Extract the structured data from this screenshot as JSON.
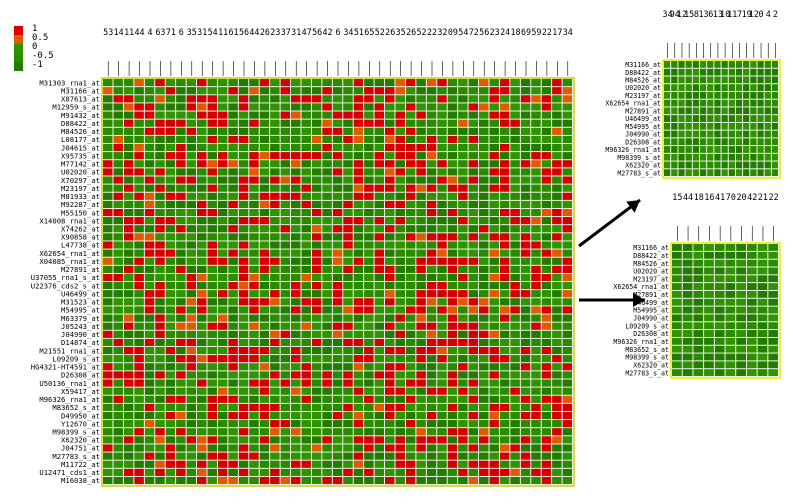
{
  "colors": {
    "high": "#d40000",
    "mid_high": "#e05a00",
    "mid": "#2f9400",
    "mid_low": "#2a8a00",
    "low": "#237c00",
    "grid": "#ffffff",
    "panel_border": "#e8e800",
    "arrow": "#000000"
  },
  "legend": {
    "items": [
      {
        "label": "1",
        "color": "#d40000"
      },
      {
        "label": "0.5",
        "color": "#e05a00"
      },
      {
        "label": "0",
        "color": "#2f9400"
      },
      {
        "label": "-0.5",
        "color": "#2a8a00"
      },
      {
        "label": "-1",
        "color": "#237c00"
      }
    ]
  },
  "chart_data": [
    {
      "type": "heatmap",
      "title": "",
      "column_labels": [
        "53",
        "14",
        "11",
        "44",
        "4",
        "63",
        "71",
        "6",
        "35",
        "31",
        "54",
        "11",
        "61",
        "56",
        "44",
        "26",
        "23",
        "37",
        "31",
        "47",
        "56",
        "42",
        "6",
        "34",
        "51",
        "65",
        "52",
        "26",
        "35",
        "26",
        "52",
        "22",
        "32",
        "09",
        "54",
        "72",
        "56",
        "23",
        "24",
        "18",
        "69",
        "59",
        "22",
        "17",
        "34"
      ],
      "row_labels": [
        "M31303_rna1_at",
        "M31166_at",
        "X87613_at",
        "M12959_s_at",
        "M91432_at",
        "D88422_at",
        "M84526_at",
        "L08177_at",
        "J04615_at",
        "X95735_at",
        "M77142_at",
        "U02020_at",
        "X70297_at",
        "M23197_at",
        "M81933_at",
        "M92287_at",
        "M55150_at",
        "X14008_rna1_at",
        "X74262_at",
        "X90858_at",
        "L47738_at",
        "X62654_rna1_at",
        "X04085_rna1_at",
        "M27891_at",
        "U37055_rna1_s_at",
        "U22376_cds2_s_at",
        "U46499_at",
        "M31523_at",
        "M54995_at",
        "M63379_at",
        "J05243_at",
        "J04990_at",
        "D14874_at",
        "M21551_rna1_at",
        "L09209_s_at",
        "HG4321-HT4591_at",
        "D26308_at",
        "U50136_rna1_at",
        "X59417_at",
        "M96326_rna1_at",
        "M83652_s_at",
        "D49950_at",
        "Y12670_at",
        "M98399_s_at",
        "X62320_at",
        "J04751_at",
        "M27783_s_at",
        "M11722_at",
        "U12471_cds1_at",
        "M16038_at"
      ],
      "value_scale": [
        -1,
        1
      ],
      "n_columns": 45,
      "red_cell_fraction": 0.32
    },
    {
      "type": "heatmap",
      "title": "",
      "column_labels": [
        "34",
        "94",
        "12",
        "15",
        "8",
        "13",
        "6",
        "13",
        "10",
        "11",
        "7",
        "19",
        "12",
        "0",
        "4",
        "2"
      ],
      "row_labels": [
        "M31166_at",
        "D88422_at",
        "M84526_at",
        "U02020_at",
        "M23197_at",
        "X62654_rna1_at",
        "M27891_at",
        "U46499_at",
        "M54995_at",
        "J04990_at",
        "D26308_at",
        "M96326_rna1_at",
        "M98399_s_at",
        "X62320_at",
        "M27783_s_at"
      ],
      "value_scale": [
        -1,
        1
      ],
      "n_columns": 16,
      "red_cell_fraction": 0.0
    },
    {
      "type": "heatmap",
      "title": "",
      "column_labels": [
        "15",
        "44",
        "18",
        "16",
        "41",
        "70",
        "20",
        "42",
        "21",
        "22"
      ],
      "row_labels": [
        "M31166_at",
        "D88422_at",
        "M84526_at",
        "U02020_at",
        "M23197_at",
        "X62654_rna1_at",
        "M27891_at",
        "U46499_at",
        "M54995_at",
        "J04990_at",
        "L09209_s_at",
        "D26308_at",
        "M96326_rna1_at",
        "M83652_s_at",
        "M98399_s_at",
        "X62320_at",
        "M27783_s_at"
      ],
      "value_scale": [
        -1,
        1
      ],
      "n_columns": 10,
      "red_cell_fraction": 0.0
    }
  ]
}
